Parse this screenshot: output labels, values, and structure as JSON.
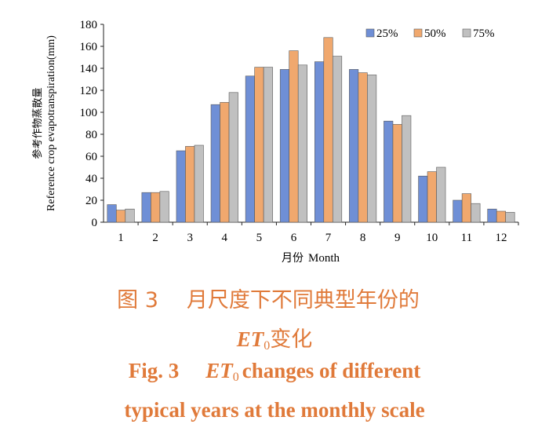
{
  "chart_data": {
    "type": "bar",
    "categories": [
      "1",
      "2",
      "3",
      "4",
      "5",
      "6",
      "7",
      "8",
      "9",
      "10",
      "11",
      "12"
    ],
    "series": [
      {
        "name": "25%",
        "color": "#6f8fd6",
        "values": [
          16,
          27,
          65,
          107,
          133,
          139,
          146,
          139,
          92,
          42,
          20,
          12
        ]
      },
      {
        "name": "50%",
        "color": "#f0a86e",
        "values": [
          11,
          27,
          69,
          109,
          141,
          156,
          168,
          136,
          89,
          46,
          26,
          10
        ]
      },
      {
        "name": "75%",
        "color": "#c0c0c0",
        "values": [
          12,
          28,
          70,
          118,
          141,
          143,
          151,
          134,
          97,
          50,
          17,
          9
        ]
      }
    ],
    "ylim": [
      0,
      180
    ],
    "yticks": [
      0,
      20,
      40,
      60,
      80,
      100,
      120,
      140,
      160,
      180
    ],
    "ylabel_cn": "参考作物蒸散量",
    "ylabel_en": "Reference crop evapotranspiration(mm)",
    "xlabel_cn": "月份",
    "xlabel_en": "Month",
    "grid": false,
    "legend": "top-right"
  },
  "caption": {
    "cn_fig": "图 3",
    "cn_text": "月尺度下不同典型年份的",
    "cn_et": "ET",
    "cn_sub": "0",
    "cn_tail": "变化",
    "en_fig": "Fig. 3",
    "en_et": "ET",
    "en_sub": "0",
    "en_tail": "changes of different",
    "en_line2": "typical years at the monthly scale"
  }
}
